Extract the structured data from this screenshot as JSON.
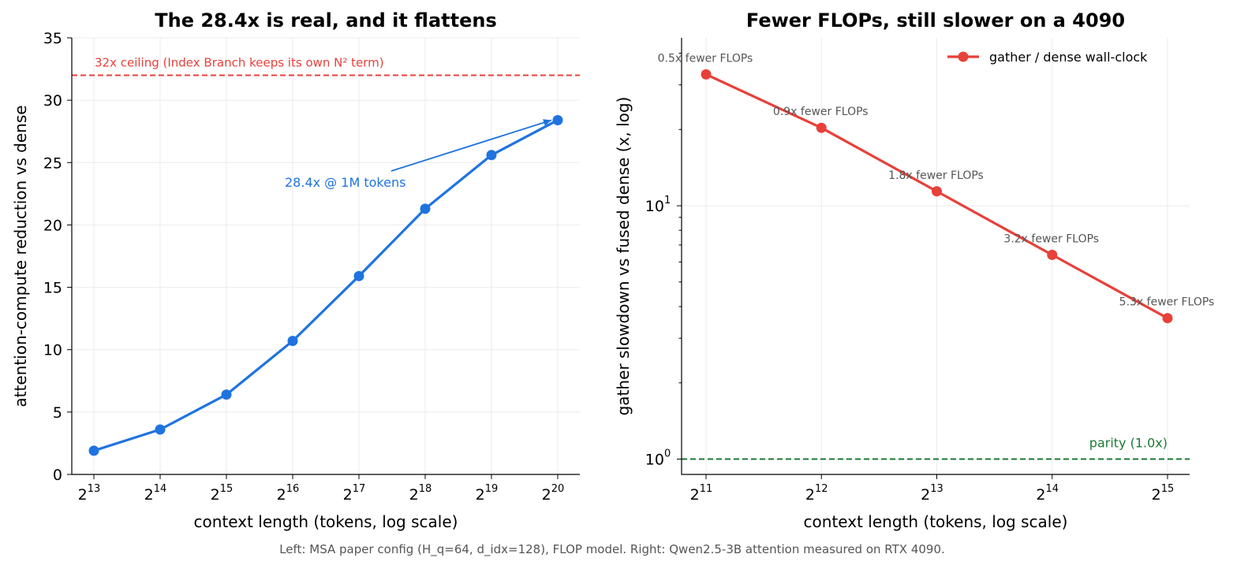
{
  "caption": "Left: MSA paper config (H_q=64, d_idx=128), FLOP model.   Right: Qwen2.5-3B attention measured on RTX 4090.",
  "chart_data": [
    {
      "type": "line",
      "title": "The 28.4x is real, and it flattens",
      "xlabel": "context length (tokens, log scale)",
      "ylabel": "attention-compute reduction vs dense",
      "x_scale": "log2",
      "x": [
        8192,
        16384,
        32768,
        65536,
        131072,
        262144,
        524288,
        1048576
      ],
      "x_tick_exponents": [
        13,
        14,
        15,
        16,
        17,
        18,
        19,
        20
      ],
      "x_tick_base": "2",
      "ylim": [
        0,
        35
      ],
      "y_ticks": [
        0,
        5,
        10,
        15,
        20,
        25,
        30,
        35
      ],
      "grid": true,
      "color": "#1f73e0",
      "series": [
        {
          "values": [
            1.9,
            3.6,
            6.4,
            10.7,
            15.9,
            21.3,
            25.6,
            28.4
          ]
        }
      ],
      "reference_line": {
        "y": 32,
        "label": "32x ceiling (Index Branch keeps its own N² term)",
        "color": "#e8403a"
      },
      "annotation": {
        "text": "28.4x @ 1M tokens",
        "x": 1048576,
        "y": 28.4,
        "color": "#1f73e0"
      }
    },
    {
      "type": "line",
      "title": "Fewer FLOPs, still slower on a 4090",
      "xlabel": "context length (tokens, log scale)",
      "ylabel": "gather slowdown vs fused dense (x, log)",
      "x_scale": "log2",
      "y_scale": "log10",
      "x": [
        2048,
        4096,
        8192,
        16384,
        32768
      ],
      "x_tick_exponents": [
        11,
        12,
        13,
        14,
        15
      ],
      "x_tick_base": "2",
      "y_tick_exponents": [
        0,
        1
      ],
      "y_tick_base": "10",
      "ylim": [
        0.87,
        46
      ],
      "grid": true,
      "color": "#e8403a",
      "legend": {
        "position": "top-right"
      },
      "series": [
        {
          "name": "gather / dense wall-clock",
          "values": [
            33,
            20.3,
            11.4,
            6.4,
            3.6
          ],
          "point_labels": [
            "0.5x fewer FLOPs",
            "0.9x fewer FLOPs",
            "1.8x fewer FLOPs",
            "3.2x fewer FLOPs",
            "5.3x fewer FLOPs"
          ]
        }
      ],
      "reference_line": {
        "y": 1.0,
        "label": "parity (1.0x)",
        "color": "#1a7a33"
      }
    }
  ]
}
